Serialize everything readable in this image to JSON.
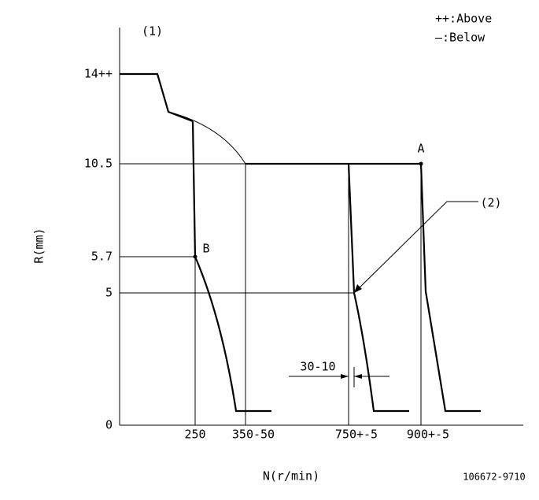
{
  "diagram": {
    "marker": "(1)",
    "legend": {
      "above": "++:Above",
      "below": "—:Below"
    },
    "y_axis": {
      "title": "R(mm)",
      "labels": [
        "14++",
        "10.5",
        "5.7",
        "5",
        "0"
      ]
    },
    "x_axis": {
      "title": "N(r/min)",
      "labels": [
        "250",
        "350-50",
        "750+-5",
        "900+-5"
      ]
    },
    "points": {
      "a": "A",
      "b": "B"
    },
    "callout": "(2)",
    "dimension": "30-10",
    "drawing_number": "106672-9710"
  }
}
